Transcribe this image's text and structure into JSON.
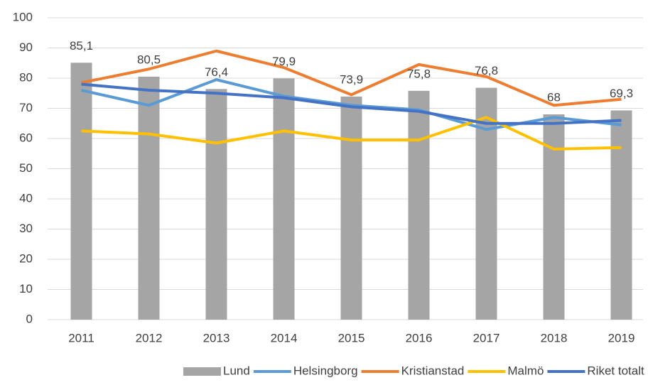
{
  "chart_data": {
    "type": "bar",
    "categories": [
      "2011",
      "2012",
      "2013",
      "2014",
      "2015",
      "2016",
      "2017",
      "2018",
      "2019"
    ],
    "series": [
      {
        "name": "Lund",
        "type": "bar",
        "color": "#a5a5a5",
        "values": [
          85.1,
          80.5,
          76.4,
          79.9,
          73.9,
          75.8,
          76.8,
          68,
          69.3
        ],
        "value_labels": [
          "85,1",
          "80,5",
          "76,4",
          "79,9",
          "73,9",
          "75,8",
          "76,8",
          "68",
          "69,3"
        ]
      },
      {
        "name": "Helsingborg",
        "type": "line",
        "color": "#5b9bd5",
        "values": [
          76,
          71,
          79.5,
          74,
          71,
          69.5,
          63,
          67,
          64.5
        ]
      },
      {
        "name": "Kristianstad",
        "type": "line",
        "color": "#ed7d31",
        "values": [
          78.5,
          83,
          89,
          83.5,
          74.5,
          84.5,
          80.5,
          71,
          73
        ]
      },
      {
        "name": "Malmö",
        "type": "line",
        "color": "#ffc000",
        "values": [
          62.5,
          61.5,
          58.5,
          62.5,
          59.5,
          59.5,
          67,
          56.5,
          57
        ]
      },
      {
        "name": "Riket totalt",
        "type": "line",
        "color": "#4472c4",
        "values": [
          78,
          76,
          75,
          73.5,
          70.5,
          69,
          65,
          65,
          66
        ]
      }
    ],
    "ylim": [
      0,
      100
    ],
    "yticks": [
      0,
      10,
      20,
      30,
      40,
      50,
      60,
      70,
      80,
      90,
      100
    ],
    "grid": true,
    "legend": "bottom"
  }
}
